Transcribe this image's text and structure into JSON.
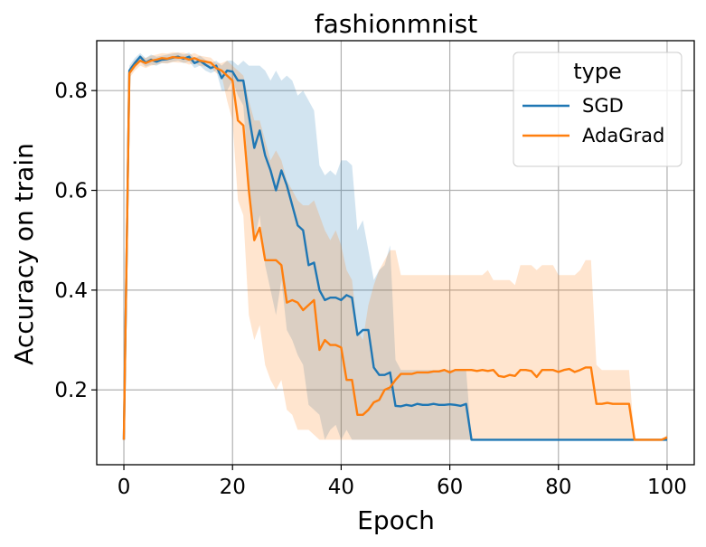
{
  "chart_data": {
    "type": "line",
    "title": "fashionmnist",
    "xlabel": "Epoch",
    "ylabel": "Accuracy on train",
    "xlim": [
      -5,
      105
    ],
    "ylim": [
      0.05,
      0.9
    ],
    "xticks": [
      0,
      20,
      40,
      60,
      80,
      100
    ],
    "yticks": [
      0.2,
      0.4,
      0.6,
      0.8
    ],
    "xtick_labels": [
      "0",
      "20",
      "40",
      "60",
      "80",
      "100"
    ],
    "ytick_labels": [
      "0.2",
      "0.4",
      "0.6",
      "0.8"
    ],
    "grid": true,
    "legend": {
      "title": "type",
      "placement": "top-right"
    },
    "series": [
      {
        "name": "SGD",
        "color": "#1f77b4",
        "x": [
          0,
          1,
          2,
          3,
          4,
          5,
          6,
          7,
          8,
          9,
          10,
          11,
          12,
          13,
          14,
          15,
          16,
          17,
          18,
          19,
          20,
          21,
          22,
          23,
          24,
          25,
          26,
          27,
          28,
          29,
          30,
          31,
          32,
          33,
          34,
          35,
          36,
          37,
          38,
          39,
          40,
          41,
          42,
          43,
          44,
          45,
          46,
          47,
          48,
          49,
          50,
          51,
          52,
          53,
          54,
          55,
          56,
          57,
          58,
          59,
          60,
          61,
          62,
          63,
          64,
          65,
          66,
          67,
          68,
          69,
          70,
          71,
          72,
          73,
          74,
          75,
          76,
          77,
          78,
          79,
          80,
          81,
          82,
          83,
          84,
          85,
          86,
          87,
          88,
          89,
          90,
          91,
          92,
          93,
          94,
          95,
          96,
          97,
          98,
          99,
          100
        ],
        "y": [
          0.1,
          0.84,
          0.855,
          0.868,
          0.856,
          0.862,
          0.858,
          0.862,
          0.863,
          0.866,
          0.868,
          0.864,
          0.868,
          0.855,
          0.86,
          0.852,
          0.845,
          0.85,
          0.825,
          0.84,
          0.838,
          0.82,
          0.82,
          0.75,
          0.685,
          0.72,
          0.67,
          0.64,
          0.6,
          0.64,
          0.61,
          0.57,
          0.53,
          0.52,
          0.45,
          0.455,
          0.4,
          0.38,
          0.385,
          0.385,
          0.38,
          0.39,
          0.385,
          0.31,
          0.32,
          0.32,
          0.245,
          0.23,
          0.23,
          0.235,
          0.168,
          0.167,
          0.17,
          0.168,
          0.172,
          0.17,
          0.17,
          0.172,
          0.17,
          0.17,
          0.171,
          0.17,
          0.168,
          0.172,
          0.1,
          0.1,
          0.1,
          0.1,
          0.1,
          0.1,
          0.1,
          0.1,
          0.1,
          0.1,
          0.1,
          0.1,
          0.1,
          0.1,
          0.1,
          0.1,
          0.1,
          0.1,
          0.1,
          0.1,
          0.1,
          0.1,
          0.1,
          0.1,
          0.1,
          0.1,
          0.1,
          0.1,
          0.1,
          0.1,
          0.1,
          0.1,
          0.1,
          0.1,
          0.1,
          0.1,
          0.1
        ],
        "y_lower": [
          0.1,
          0.83,
          0.845,
          0.858,
          0.848,
          0.852,
          0.85,
          0.855,
          0.855,
          0.858,
          0.86,
          0.855,
          0.858,
          0.845,
          0.85,
          0.84,
          0.835,
          0.84,
          0.8,
          0.8,
          0.82,
          0.79,
          0.77,
          0.62,
          0.5,
          0.55,
          0.45,
          0.4,
          0.35,
          0.42,
          0.32,
          0.3,
          0.27,
          0.25,
          0.17,
          0.16,
          0.15,
          0.1,
          0.12,
          0.13,
          0.1,
          0.12,
          0.1,
          0.1,
          0.1,
          0.1,
          0.1,
          0.1,
          0.1,
          0.1,
          0.1,
          0.1,
          0.1,
          0.1,
          0.1,
          0.1,
          0.1,
          0.1,
          0.1,
          0.1,
          0.1,
          0.1,
          0.1,
          0.1,
          0.1,
          0.1,
          0.1,
          0.1,
          0.1,
          0.1,
          0.1,
          0.1,
          0.1,
          0.1,
          0.1,
          0.1,
          0.1,
          0.1,
          0.1,
          0.1,
          0.1,
          0.1,
          0.1,
          0.1,
          0.1,
          0.1,
          0.1,
          0.1,
          0.1,
          0.1,
          0.1,
          0.1,
          0.1,
          0.1,
          0.1,
          0.1,
          0.1,
          0.1,
          0.1,
          0.1,
          0.1
        ],
        "y_upper": [
          0.1,
          0.85,
          0.865,
          0.875,
          0.865,
          0.872,
          0.868,
          0.87,
          0.872,
          0.874,
          0.876,
          0.872,
          0.876,
          0.865,
          0.87,
          0.862,
          0.855,
          0.86,
          0.85,
          0.86,
          0.86,
          0.85,
          0.86,
          0.85,
          0.85,
          0.85,
          0.84,
          0.82,
          0.84,
          0.82,
          0.83,
          0.82,
          0.79,
          0.8,
          0.78,
          0.76,
          0.65,
          0.63,
          0.64,
          0.63,
          0.66,
          0.66,
          0.65,
          0.52,
          0.54,
          0.48,
          0.42,
          0.44,
          0.45,
          0.49,
          0.26,
          0.24,
          0.24,
          0.24,
          0.24,
          0.24,
          0.24,
          0.24,
          0.24,
          0.24,
          0.24,
          0.24,
          0.24,
          0.24,
          0.1,
          0.1,
          0.1,
          0.1,
          0.1,
          0.1,
          0.1,
          0.1,
          0.1,
          0.1,
          0.1,
          0.1,
          0.1,
          0.1,
          0.1,
          0.1,
          0.1,
          0.1,
          0.1,
          0.1,
          0.1,
          0.1,
          0.1,
          0.1,
          0.1,
          0.1,
          0.1,
          0.1,
          0.1,
          0.1,
          0.1,
          0.1,
          0.1,
          0.1,
          0.1,
          0.1,
          0.1
        ]
      },
      {
        "name": "AdaGrad",
        "color": "#ff7f0e",
        "x": [
          0,
          1,
          2,
          3,
          4,
          5,
          6,
          7,
          8,
          9,
          10,
          11,
          12,
          13,
          14,
          15,
          16,
          17,
          18,
          19,
          20,
          21,
          22,
          23,
          24,
          25,
          26,
          27,
          28,
          29,
          30,
          31,
          32,
          33,
          34,
          35,
          36,
          37,
          38,
          39,
          40,
          41,
          42,
          43,
          44,
          45,
          46,
          47,
          48,
          49,
          50,
          51,
          52,
          53,
          54,
          55,
          56,
          57,
          58,
          59,
          60,
          61,
          62,
          63,
          64,
          65,
          66,
          67,
          68,
          69,
          70,
          71,
          72,
          73,
          74,
          75,
          76,
          77,
          78,
          79,
          80,
          81,
          82,
          83,
          84,
          85,
          86,
          87,
          88,
          89,
          90,
          91,
          92,
          93,
          94,
          95,
          96,
          97,
          98,
          99,
          100
        ],
        "y": [
          0.1,
          0.835,
          0.85,
          0.86,
          0.855,
          0.86,
          0.862,
          0.865,
          0.864,
          0.867,
          0.866,
          0.866,
          0.862,
          0.865,
          0.86,
          0.858,
          0.856,
          0.845,
          0.84,
          0.83,
          0.82,
          0.74,
          0.73,
          0.6,
          0.5,
          0.525,
          0.46,
          0.46,
          0.46,
          0.45,
          0.375,
          0.38,
          0.375,
          0.36,
          0.37,
          0.38,
          0.28,
          0.3,
          0.29,
          0.29,
          0.285,
          0.22,
          0.22,
          0.15,
          0.15,
          0.16,
          0.175,
          0.18,
          0.2,
          0.205,
          0.22,
          0.232,
          0.232,
          0.232,
          0.235,
          0.235,
          0.235,
          0.237,
          0.237,
          0.24,
          0.235,
          0.24,
          0.24,
          0.24,
          0.24,
          0.238,
          0.24,
          0.238,
          0.24,
          0.228,
          0.226,
          0.23,
          0.228,
          0.24,
          0.24,
          0.238,
          0.226,
          0.24,
          0.24,
          0.24,
          0.236,
          0.24,
          0.242,
          0.236,
          0.24,
          0.245,
          0.245,
          0.172,
          0.172,
          0.174,
          0.172,
          0.172,
          0.172,
          0.172,
          0.1,
          0.1,
          0.1,
          0.1,
          0.1,
          0.1,
          0.105
        ],
        "y_lower": [
          0.1,
          0.825,
          0.84,
          0.85,
          0.845,
          0.85,
          0.852,
          0.855,
          0.854,
          0.857,
          0.856,
          0.856,
          0.852,
          0.855,
          0.85,
          0.848,
          0.846,
          0.835,
          0.83,
          0.78,
          0.74,
          0.58,
          0.55,
          0.35,
          0.3,
          0.33,
          0.25,
          0.22,
          0.2,
          0.22,
          0.16,
          0.15,
          0.12,
          0.12,
          0.12,
          0.11,
          0.1,
          0.1,
          0.1,
          0.1,
          0.1,
          0.1,
          0.1,
          0.1,
          0.1,
          0.1,
          0.1,
          0.1,
          0.1,
          0.1,
          0.1,
          0.1,
          0.1,
          0.1,
          0.1,
          0.1,
          0.1,
          0.1,
          0.1,
          0.1,
          0.1,
          0.1,
          0.1,
          0.1,
          0.1,
          0.1,
          0.1,
          0.1,
          0.1,
          0.1,
          0.1,
          0.1,
          0.1,
          0.1,
          0.1,
          0.1,
          0.1,
          0.1,
          0.1,
          0.1,
          0.1,
          0.1,
          0.1,
          0.1,
          0.1,
          0.1,
          0.1,
          0.1,
          0.1,
          0.1,
          0.1,
          0.1,
          0.1,
          0.1,
          0.1,
          0.1,
          0.1,
          0.1,
          0.1,
          0.1,
          0.1
        ],
        "y_upper": [
          0.1,
          0.845,
          0.86,
          0.87,
          0.865,
          0.87,
          0.872,
          0.875,
          0.874,
          0.877,
          0.876,
          0.876,
          0.872,
          0.875,
          0.87,
          0.868,
          0.866,
          0.855,
          0.855,
          0.86,
          0.85,
          0.84,
          0.83,
          0.78,
          0.74,
          0.74,
          0.7,
          0.66,
          0.68,
          0.66,
          0.62,
          0.6,
          0.58,
          0.57,
          0.57,
          0.58,
          0.55,
          0.52,
          0.5,
          0.52,
          0.49,
          0.44,
          0.42,
          0.32,
          0.3,
          0.37,
          0.41,
          0.44,
          0.46,
          0.48,
          0.48,
          0.43,
          0.43,
          0.43,
          0.43,
          0.43,
          0.43,
          0.43,
          0.43,
          0.43,
          0.43,
          0.43,
          0.43,
          0.43,
          0.43,
          0.43,
          0.43,
          0.44,
          0.42,
          0.42,
          0.42,
          0.42,
          0.41,
          0.45,
          0.45,
          0.45,
          0.44,
          0.45,
          0.45,
          0.45,
          0.43,
          0.43,
          0.43,
          0.43,
          0.44,
          0.46,
          0.46,
          0.25,
          0.24,
          0.24,
          0.24,
          0.24,
          0.24,
          0.24,
          0.1,
          0.1,
          0.1,
          0.1,
          0.1,
          0.1,
          0.11
        ]
      }
    ]
  }
}
